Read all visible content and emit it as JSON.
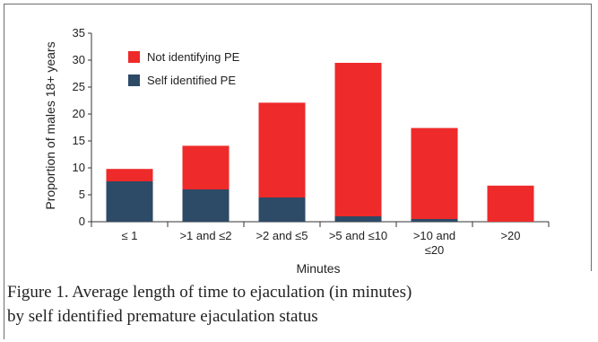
{
  "chart_data": {
    "type": "bar",
    "stacked": true,
    "categories": [
      "≤ 1",
      ">1 and ≤2",
      ">2 and ≤5",
      ">5 and ≤10",
      ">10 and ≤20",
      ">20"
    ],
    "category_lines": [
      [
        "≤ 1"
      ],
      [
        ">1 and ≤2"
      ],
      [
        ">2 and ≤5"
      ],
      [
        ">5 and ≤10"
      ],
      [
        ">10 and",
        "≤20"
      ],
      [
        ">20"
      ]
    ],
    "series": [
      {
        "name": "Self identified PE",
        "color": "#2d4a66",
        "values": [
          7.5,
          6.0,
          4.5,
          1.0,
          0.5,
          0.0
        ]
      },
      {
        "name": "Not identifying PE",
        "color": "#ee2a2a",
        "values": [
          2.3,
          8.1,
          17.6,
          28.5,
          16.9,
          6.7
        ]
      }
    ],
    "ylabel": "Proportion of males 18+ years",
    "xlabel": "Minutes",
    "ylim": [
      0,
      35
    ],
    "yticks": [
      0,
      5,
      10,
      15,
      20,
      25,
      30,
      35
    ],
    "legend_position": "top-left",
    "grid": false
  },
  "caption": {
    "line1": "Figure 1. Average length of time to ejaculation (in minutes)",
    "line2": "by self identified premature ejaculation status"
  }
}
